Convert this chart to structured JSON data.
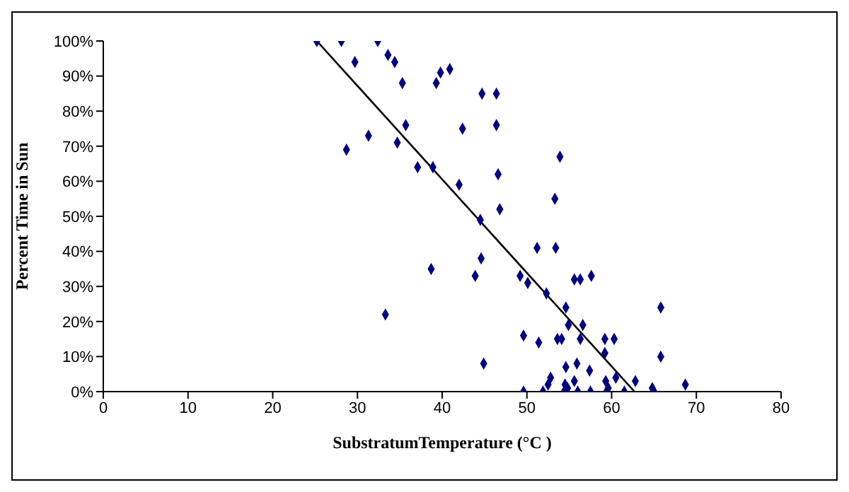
{
  "chart_data": {
    "type": "scatter",
    "xlabel": "SubstratumTemperature (°C )",
    "ylabel": "Percent Time in Sun",
    "xlim": [
      0,
      80
    ],
    "xticks": [
      0,
      10,
      20,
      30,
      40,
      50,
      60,
      70,
      80
    ],
    "ylim": [
      0,
      100
    ],
    "yticks": [
      {
        "value": 0,
        "label": "0%"
      },
      {
        "value": 10,
        "label": "10%"
      },
      {
        "value": 20,
        "label": "20%"
      },
      {
        "value": 30,
        "label": "30%"
      },
      {
        "value": 40,
        "label": "40%"
      },
      {
        "value": 50,
        "label": "50%"
      },
      {
        "value": 60,
        "label": "60%"
      },
      {
        "value": 70,
        "label": "70%"
      },
      {
        "value": 80,
        "label": "80%"
      },
      {
        "value": 90,
        "label": "90%"
      },
      {
        "value": 100,
        "label": "100%"
      }
    ],
    "grid": false,
    "legend": false,
    "marker": "diamond",
    "series": [
      {
        "type": "scatter",
        "color": "#000080",
        "x": [
          25.2,
          28.1,
          32.4,
          33.6,
          34.4,
          29.7,
          39.8,
          40.9,
          35.3,
          39.3,
          44.7,
          46.4,
          35.7,
          42.4,
          46.4,
          31.3,
          34.7,
          28.7,
          53.9,
          37.1,
          38.9,
          46.6,
          42.0,
          53.3,
          46.8,
          44.5,
          51.2,
          53.4,
          38.7,
          44.6,
          43.9,
          49.2,
          50.1,
          55.6,
          56.3,
          57.6,
          52.3,
          54.6,
          65.8,
          54.9,
          56.6,
          49.6,
          51.4,
          53.6,
          54.1,
          56.3,
          59.2,
          60.3,
          59.2,
          44.9,
          54.6,
          55.9,
          65.8,
          57.4,
          52.8,
          52.5,
          54.5,
          55.6,
          59.3,
          60.5,
          62.8,
          68.7,
          64.8,
          65.0,
          49.6,
          51.9,
          54.4,
          54.8,
          56.0,
          57.5,
          59.4,
          59.6,
          61.5,
          33.3
        ],
        "values": [
          100,
          100,
          100,
          96,
          94,
          94,
          91,
          92,
          88,
          88,
          85,
          85,
          76,
          75,
          76,
          73,
          71,
          69,
          67,
          64,
          64,
          62,
          59,
          55,
          52,
          49,
          41,
          41,
          35,
          38,
          33,
          33,
          31,
          32,
          32,
          33,
          28,
          24,
          24,
          19,
          19,
          16,
          14,
          15,
          15,
          15,
          15,
          15,
          11,
          8,
          7,
          8,
          10,
          6,
          4,
          2,
          2,
          3,
          3,
          4,
          3,
          2,
          1,
          0,
          0,
          0,
          0,
          1,
          0,
          0,
          0,
          1,
          0,
          22
        ]
      },
      {
        "type": "line",
        "color": "#000000",
        "marker": "none",
        "x": [
          25.2,
          62.7
        ],
        "values": [
          100,
          0
        ]
      }
    ]
  }
}
